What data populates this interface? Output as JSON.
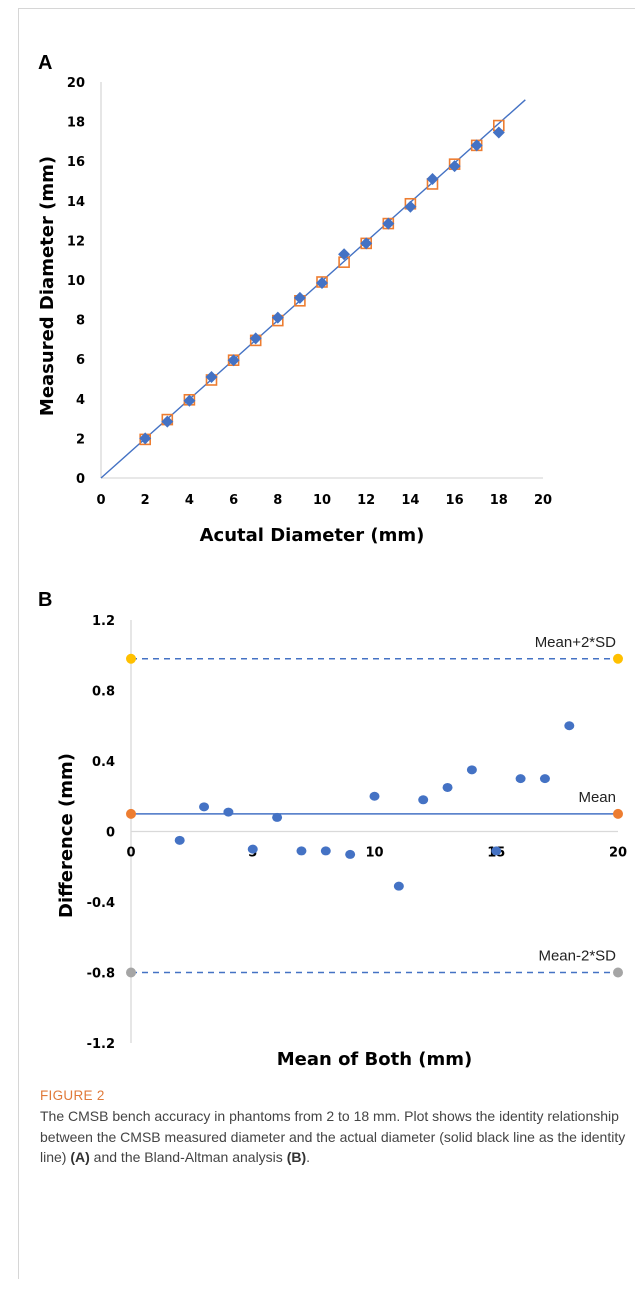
{
  "figure": {
    "label": "FIGURE 2",
    "caption_before_a": "The CMSB bench accuracy in phantoms from 2 to 18 mm. Plot shows the identity relationship between the CMSB measured diameter and the actual diameter (solid black line as the identity line) ",
    "ref_a": "(A)",
    "caption_between": " and the Bland-Altman analysis ",
    "ref_b": "(B)",
    "caption_end": "."
  },
  "colors": {
    "series_blue": "#4472c4",
    "series_orange": "#ed7d31",
    "limit_yellow": "#ffc000",
    "limit_gray": "#a5a5a5",
    "axis": "#d9d9d9"
  },
  "chart_data": [
    {
      "panel": "A",
      "type": "scatter",
      "xlabel": "Acutal Diameter (mm)",
      "ylabel": "Measured Diameter (mm)",
      "xlim": [
        0,
        20
      ],
      "ylim": [
        0,
        20
      ],
      "xticks": [
        0,
        2,
        4,
        6,
        8,
        10,
        12,
        14,
        16,
        18,
        20
      ],
      "yticks": [
        0,
        2,
        4,
        6,
        8,
        10,
        12,
        14,
        16,
        18,
        20
      ],
      "identity_line": [
        [
          0,
          0
        ],
        [
          19.2,
          19.1
        ]
      ],
      "series": [
        {
          "marker": "diamond-filled",
          "color": "#4472c4",
          "x": [
            2,
            3,
            4,
            5,
            6,
            7,
            8,
            9,
            10,
            11,
            12,
            13,
            14,
            15,
            16,
            17,
            18
          ],
          "y": [
            2.0,
            2.85,
            3.9,
            5.1,
            5.95,
            7.05,
            8.1,
            9.1,
            9.85,
            11.3,
            11.85,
            12.85,
            13.7,
            15.1,
            15.75,
            16.8,
            17.45
          ]
        },
        {
          "marker": "square-open",
          "color": "#ed7d31",
          "x": [
            2,
            3,
            4,
            5,
            6,
            7,
            8,
            9,
            10,
            11,
            12,
            13,
            14,
            15,
            16,
            17,
            18
          ],
          "y": [
            1.95,
            2.95,
            3.95,
            4.95,
            5.95,
            6.95,
            7.95,
            8.95,
            9.9,
            10.9,
            11.85,
            12.85,
            13.85,
            14.85,
            15.85,
            16.8,
            17.8
          ]
        }
      ],
      "grid": false
    },
    {
      "panel": "B",
      "type": "scatter",
      "xlabel": "Mean of Both (mm)",
      "ylabel": "Difference (mm)",
      "xlim": [
        0,
        20
      ],
      "ylim": [
        -1.2,
        1.2
      ],
      "xticks": [
        0,
        5,
        10,
        15,
        20
      ],
      "yticks": [
        1.2,
        0.8,
        0.4,
        0,
        -0.4,
        -0.8,
        -1.2
      ],
      "points": {
        "x": [
          2,
          3,
          4,
          5,
          6,
          7,
          8,
          9,
          10,
          11,
          12,
          13,
          14,
          15,
          16,
          17,
          18
        ],
        "y": [
          -0.05,
          0.14,
          0.11,
          -0.1,
          0.08,
          -0.11,
          -0.11,
          -0.13,
          0.2,
          -0.31,
          0.18,
          0.25,
          0.35,
          -0.11,
          0.3,
          0.3,
          0.6
        ],
        "color": "#4472c4"
      },
      "reference_lines": [
        {
          "label": "Mean+2*SD",
          "y": 0.98,
          "style": "dashed",
          "endpoint_color": "#ffc000"
        },
        {
          "label": "Mean",
          "y": 0.1,
          "style": "solid",
          "endpoint_color": "#ed7d31"
        },
        {
          "label": "Mean-2*SD",
          "y": -0.8,
          "style": "dashed",
          "endpoint_color": "#a5a5a5"
        }
      ],
      "grid": false
    }
  ]
}
